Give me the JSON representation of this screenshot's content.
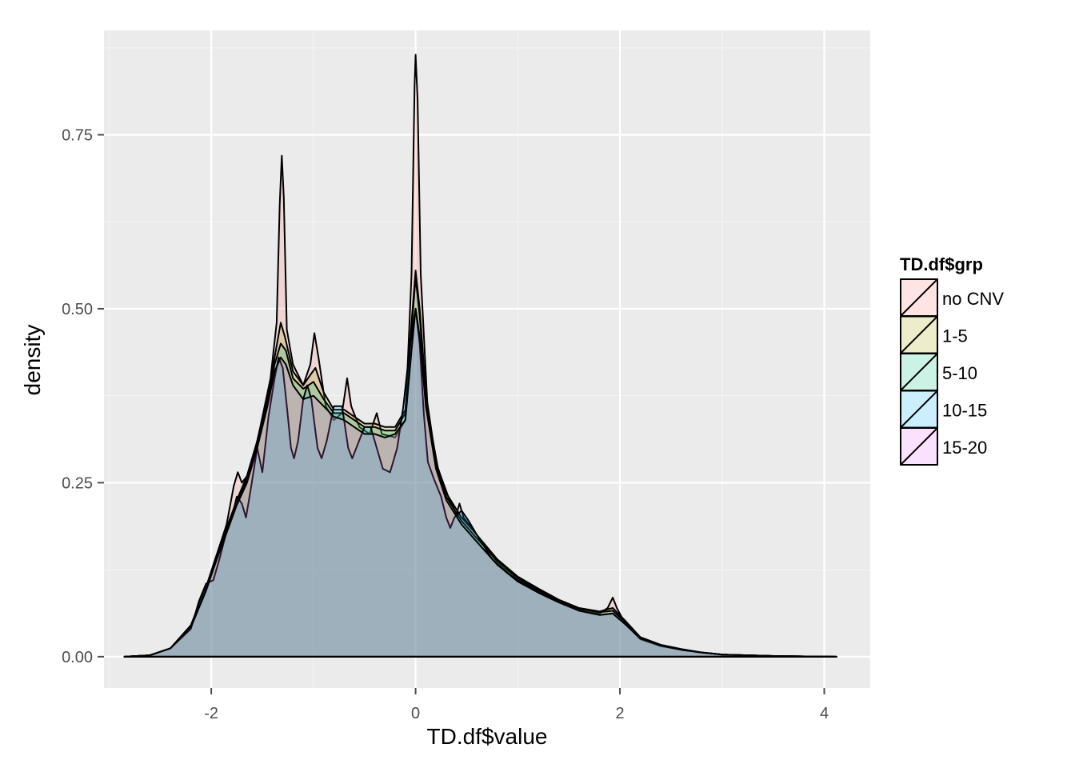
{
  "chart_data": {
    "type": "area",
    "xlabel": "TD.df$value",
    "ylabel": "density",
    "xlim": [
      -3.05,
      4.45
    ],
    "ylim": [
      -0.045,
      0.9
    ],
    "x_ticks": [
      -2,
      0,
      2,
      4
    ],
    "x_tick_labels": [
      "-2",
      "0",
      "2",
      "4"
    ],
    "y_ticks": [
      0,
      0.25,
      0.5,
      0.75
    ],
    "y_tick_labels": [
      "0.00",
      "0.25",
      "0.50",
      "0.75"
    ],
    "grid": true,
    "legend": {
      "title": "TD.df$grp",
      "position": "right",
      "entries": [
        "no CNV",
        "1-5",
        "5-10",
        "10-15",
        "15-20"
      ]
    },
    "series": [
      {
        "name": "no CNV",
        "color": "#F8766D",
        "points": [
          [
            -2.85,
            0
          ],
          [
            -2.6,
            0.002
          ],
          [
            -2.4,
            0.012
          ],
          [
            -2.2,
            0.045
          ],
          [
            -2.05,
            0.1
          ],
          [
            -1.95,
            0.145
          ],
          [
            -1.85,
            0.19
          ],
          [
            -1.78,
            0.245
          ],
          [
            -1.74,
            0.265
          ],
          [
            -1.7,
            0.25
          ],
          [
            -1.62,
            0.265
          ],
          [
            -1.52,
            0.33
          ],
          [
            -1.42,
            0.4
          ],
          [
            -1.36,
            0.48
          ],
          [
            -1.33,
            0.65
          ],
          [
            -1.31,
            0.72
          ],
          [
            -1.29,
            0.66
          ],
          [
            -1.26,
            0.47
          ],
          [
            -1.2,
            0.42
          ],
          [
            -1.1,
            0.39
          ],
          [
            -1.03,
            0.42
          ],
          [
            -0.99,
            0.465
          ],
          [
            -0.95,
            0.43
          ],
          [
            -0.88,
            0.36
          ],
          [
            -0.8,
            0.34
          ],
          [
            -0.72,
            0.35
          ],
          [
            -0.67,
            0.4
          ],
          [
            -0.63,
            0.36
          ],
          [
            -0.55,
            0.33
          ],
          [
            -0.45,
            0.32
          ],
          [
            -0.38,
            0.35
          ],
          [
            -0.33,
            0.32
          ],
          [
            -0.2,
            0.315
          ],
          [
            -0.1,
            0.34
          ],
          [
            -0.04,
            0.55
          ],
          [
            -0.01,
            0.82
          ],
          [
            0,
            0.865
          ],
          [
            0.02,
            0.8
          ],
          [
            0.05,
            0.55
          ],
          [
            0.12,
            0.35
          ],
          [
            0.22,
            0.27
          ],
          [
            0.32,
            0.23
          ],
          [
            0.4,
            0.205
          ],
          [
            0.43,
            0.22
          ],
          [
            0.47,
            0.2
          ],
          [
            0.6,
            0.175
          ],
          [
            0.8,
            0.135
          ],
          [
            1,
            0.11
          ],
          [
            1.2,
            0.095
          ],
          [
            1.4,
            0.08
          ],
          [
            1.6,
            0.068
          ],
          [
            1.8,
            0.062
          ],
          [
            1.88,
            0.07
          ],
          [
            1.93,
            0.085
          ],
          [
            1.97,
            0.07
          ],
          [
            2.05,
            0.048
          ],
          [
            2.2,
            0.025
          ],
          [
            2.4,
            0.015
          ],
          [
            2.6,
            0.01
          ],
          [
            2.8,
            0.006
          ],
          [
            3.0,
            0.003
          ],
          [
            3.5,
            0.001
          ],
          [
            4.12,
            0
          ]
        ]
      },
      {
        "name": "1-5",
        "color": "#A3A500",
        "points": [
          [
            -2.85,
            0
          ],
          [
            -2.6,
            0.002
          ],
          [
            -2.4,
            0.012
          ],
          [
            -2.2,
            0.045
          ],
          [
            -2.05,
            0.1
          ],
          [
            -1.95,
            0.145
          ],
          [
            -1.85,
            0.185
          ],
          [
            -1.75,
            0.225
          ],
          [
            -1.65,
            0.26
          ],
          [
            -1.55,
            0.31
          ],
          [
            -1.45,
            0.37
          ],
          [
            -1.38,
            0.43
          ],
          [
            -1.32,
            0.48
          ],
          [
            -1.28,
            0.46
          ],
          [
            -1.2,
            0.41
          ],
          [
            -1.1,
            0.39
          ],
          [
            -1.03,
            0.405
          ],
          [
            -0.98,
            0.415
          ],
          [
            -0.9,
            0.38
          ],
          [
            -0.8,
            0.355
          ],
          [
            -0.7,
            0.355
          ],
          [
            -0.6,
            0.345
          ],
          [
            -0.5,
            0.335
          ],
          [
            -0.4,
            0.335
          ],
          [
            -0.3,
            0.33
          ],
          [
            -0.2,
            0.33
          ],
          [
            -0.1,
            0.355
          ],
          [
            -0.04,
            0.48
          ],
          [
            0,
            0.555
          ],
          [
            0.04,
            0.5
          ],
          [
            0.1,
            0.38
          ],
          [
            0.2,
            0.28
          ],
          [
            0.3,
            0.235
          ],
          [
            0.45,
            0.2
          ],
          [
            0.6,
            0.175
          ],
          [
            0.8,
            0.14
          ],
          [
            1,
            0.115
          ],
          [
            1.2,
            0.098
          ],
          [
            1.4,
            0.082
          ],
          [
            1.6,
            0.07
          ],
          [
            1.8,
            0.065
          ],
          [
            1.93,
            0.07
          ],
          [
            2.05,
            0.052
          ],
          [
            2.2,
            0.028
          ],
          [
            2.4,
            0.017
          ],
          [
            2.6,
            0.011
          ],
          [
            2.8,
            0.006
          ],
          [
            3.0,
            0.003
          ],
          [
            3.5,
            0.001
          ],
          [
            4.12,
            0
          ]
        ]
      },
      {
        "name": "5-10",
        "color": "#00BF7D",
        "points": [
          [
            -2.85,
            0
          ],
          [
            -2.6,
            0.002
          ],
          [
            -2.4,
            0.012
          ],
          [
            -2.2,
            0.043
          ],
          [
            -2.05,
            0.097
          ],
          [
            -1.95,
            0.14
          ],
          [
            -1.85,
            0.18
          ],
          [
            -1.75,
            0.22
          ],
          [
            -1.65,
            0.255
          ],
          [
            -1.55,
            0.305
          ],
          [
            -1.45,
            0.365
          ],
          [
            -1.38,
            0.42
          ],
          [
            -1.32,
            0.45
          ],
          [
            -1.27,
            0.44
          ],
          [
            -1.2,
            0.4
          ],
          [
            -1.1,
            0.385
          ],
          [
            -1.0,
            0.395
          ],
          [
            -0.9,
            0.37
          ],
          [
            -0.8,
            0.35
          ],
          [
            -0.7,
            0.35
          ],
          [
            -0.6,
            0.34
          ],
          [
            -0.5,
            0.33
          ],
          [
            -0.4,
            0.33
          ],
          [
            -0.3,
            0.325
          ],
          [
            -0.2,
            0.325
          ],
          [
            -0.1,
            0.35
          ],
          [
            -0.04,
            0.47
          ],
          [
            0,
            0.545
          ],
          [
            0.04,
            0.49
          ],
          [
            0.1,
            0.37
          ],
          [
            0.2,
            0.275
          ],
          [
            0.3,
            0.23
          ],
          [
            0.45,
            0.195
          ],
          [
            0.6,
            0.17
          ],
          [
            0.8,
            0.138
          ],
          [
            1,
            0.113
          ],
          [
            1.2,
            0.096
          ],
          [
            1.4,
            0.081
          ],
          [
            1.6,
            0.069
          ],
          [
            1.8,
            0.064
          ],
          [
            1.93,
            0.066
          ],
          [
            2.05,
            0.05
          ],
          [
            2.2,
            0.028
          ],
          [
            2.4,
            0.017
          ],
          [
            2.6,
            0.011
          ],
          [
            2.8,
            0.006
          ],
          [
            3.0,
            0.003
          ],
          [
            3.5,
            0.001
          ],
          [
            4.12,
            0
          ]
        ]
      },
      {
        "name": "10-15",
        "color": "#00B0F6",
        "points": [
          [
            -2.85,
            0
          ],
          [
            -2.6,
            0.002
          ],
          [
            -2.4,
            0.012
          ],
          [
            -2.2,
            0.04
          ],
          [
            -2.12,
            0.08
          ],
          [
            -2.05,
            0.105
          ],
          [
            -1.98,
            0.11
          ],
          [
            -1.92,
            0.14
          ],
          [
            -1.85,
            0.18
          ],
          [
            -1.8,
            0.2
          ],
          [
            -1.75,
            0.23
          ],
          [
            -1.7,
            0.22
          ],
          [
            -1.66,
            0.2
          ],
          [
            -1.62,
            0.235
          ],
          [
            -1.55,
            0.3
          ],
          [
            -1.5,
            0.265
          ],
          [
            -1.44,
            0.345
          ],
          [
            -1.38,
            0.4
          ],
          [
            -1.34,
            0.43
          ],
          [
            -1.3,
            0.415
          ],
          [
            -1.26,
            0.36
          ],
          [
            -1.22,
            0.3
          ],
          [
            -1.19,
            0.285
          ],
          [
            -1.15,
            0.31
          ],
          [
            -1.1,
            0.37
          ],
          [
            -1.06,
            0.39
          ],
          [
            -1.02,
            0.37
          ],
          [
            -0.96,
            0.3
          ],
          [
            -0.92,
            0.285
          ],
          [
            -0.87,
            0.31
          ],
          [
            -0.8,
            0.36
          ],
          [
            -0.72,
            0.36
          ],
          [
            -0.66,
            0.3
          ],
          [
            -0.62,
            0.285
          ],
          [
            -0.58,
            0.3
          ],
          [
            -0.5,
            0.33
          ],
          [
            -0.44,
            0.33
          ],
          [
            -0.38,
            0.3
          ],
          [
            -0.32,
            0.27
          ],
          [
            -0.25,
            0.265
          ],
          [
            -0.18,
            0.3
          ],
          [
            -0.12,
            0.36
          ],
          [
            -0.06,
            0.44
          ],
          [
            0,
            0.5
          ],
          [
            0.04,
            0.45
          ],
          [
            0.08,
            0.35
          ],
          [
            0.12,
            0.28
          ],
          [
            0.18,
            0.255
          ],
          [
            0.25,
            0.23
          ],
          [
            0.3,
            0.2
          ],
          [
            0.34,
            0.185
          ],
          [
            0.38,
            0.2
          ],
          [
            0.45,
            0.21
          ],
          [
            0.52,
            0.195
          ],
          [
            0.6,
            0.175
          ],
          [
            0.75,
            0.14
          ],
          [
            0.9,
            0.12
          ],
          [
            1.0,
            0.11
          ],
          [
            1.2,
            0.093
          ],
          [
            1.4,
            0.08
          ],
          [
            1.6,
            0.066
          ],
          [
            1.8,
            0.06
          ],
          [
            1.93,
            0.062
          ],
          [
            2.05,
            0.047
          ],
          [
            2.2,
            0.026
          ],
          [
            2.4,
            0.016
          ],
          [
            2.6,
            0.01
          ],
          [
            2.8,
            0.006
          ],
          [
            3.0,
            0.003
          ],
          [
            3.5,
            0.001
          ],
          [
            4.12,
            0
          ]
        ]
      },
      {
        "name": "15-20",
        "color": "#E76BF3",
        "points": [
          [
            -2.85,
            0
          ],
          [
            -2.6,
            0.002
          ],
          [
            -2.4,
            0.012
          ],
          [
            -2.2,
            0.042
          ],
          [
            -2.05,
            0.095
          ],
          [
            -1.95,
            0.138
          ],
          [
            -1.85,
            0.178
          ],
          [
            -1.75,
            0.218
          ],
          [
            -1.65,
            0.25
          ],
          [
            -1.55,
            0.3
          ],
          [
            -1.45,
            0.36
          ],
          [
            -1.38,
            0.41
          ],
          [
            -1.32,
            0.43
          ],
          [
            -1.27,
            0.42
          ],
          [
            -1.2,
            0.39
          ],
          [
            -1.1,
            0.37
          ],
          [
            -1.0,
            0.375
          ],
          [
            -0.9,
            0.36
          ],
          [
            -0.8,
            0.345
          ],
          [
            -0.7,
            0.34
          ],
          [
            -0.6,
            0.33
          ],
          [
            -0.5,
            0.32
          ],
          [
            -0.4,
            0.32
          ],
          [
            -0.3,
            0.315
          ],
          [
            -0.2,
            0.32
          ],
          [
            -0.1,
            0.34
          ],
          [
            -0.04,
            0.44
          ],
          [
            0,
            0.5
          ],
          [
            0.04,
            0.46
          ],
          [
            0.1,
            0.36
          ],
          [
            0.2,
            0.27
          ],
          [
            0.3,
            0.225
          ],
          [
            0.45,
            0.19
          ],
          [
            0.6,
            0.165
          ],
          [
            0.8,
            0.132
          ],
          [
            1,
            0.108
          ],
          [
            1.2,
            0.092
          ],
          [
            1.4,
            0.078
          ],
          [
            1.6,
            0.066
          ],
          [
            1.8,
            0.06
          ],
          [
            1.93,
            0.062
          ],
          [
            2.05,
            0.047
          ],
          [
            2.2,
            0.026
          ],
          [
            2.4,
            0.016
          ],
          [
            2.6,
            0.01
          ],
          [
            2.8,
            0.006
          ],
          [
            3.0,
            0.003
          ],
          [
            3.5,
            0.001
          ],
          [
            4.12,
            0
          ]
        ]
      }
    ]
  }
}
